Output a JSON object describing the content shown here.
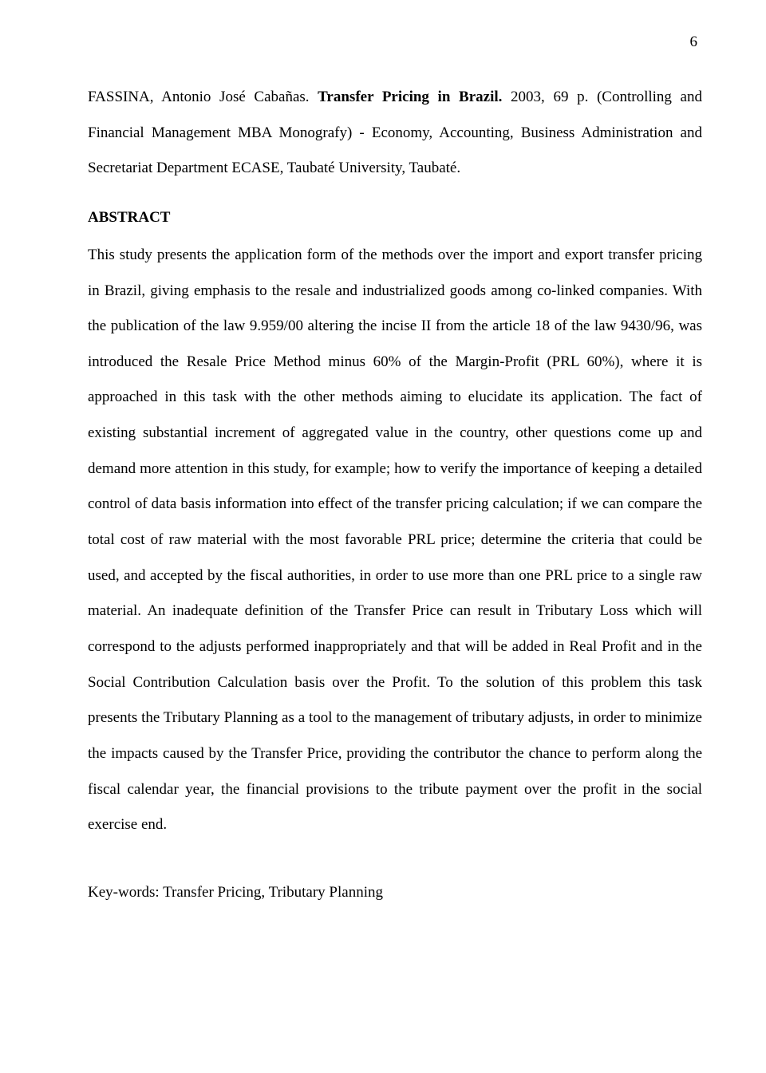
{
  "page_number": "6",
  "citation": {
    "author": "FASSINA, Antonio José Cabañas. ",
    "title_bold": "Transfer Pricing in Brazil.",
    "rest": " 2003, 69 p. (Controlling and Financial Management MBA Monografy) - Economy, Accounting, Business Administration and Secretariat Department ECASE, Taubaté University, Taubaté."
  },
  "abstract": {
    "heading": "ABSTRACT",
    "body": "This study presents the application form of the methods over the import and export transfer pricing in Brazil, giving emphasis to the resale and industrialized goods among co-linked companies. With the publication of the law 9.959/00 altering the incise II from the article 18 of the law 9430/96, was introduced the Resale Price Method minus 60% of the Margin-Profit (PRL 60%), where it is approached in this task with the other methods aiming to elucidate its application. The fact of existing substantial increment of aggregated value in the country, other questions come up and demand more attention in this study, for example; how to verify the importance of keeping a detailed control of data basis information into effect of the transfer pricing calculation; if we can compare the total cost of raw material with the most favorable PRL price; determine the criteria that could be used, and accepted by the fiscal authorities, in order to use more than one PRL price to a single raw material. An inadequate definition of the Transfer Price can result in Tributary Loss which will correspond to the adjusts performed inappropriately and that will be added in Real Profit and in the Social Contribution Calculation basis over the Profit. To the solution of this problem this task presents the Tributary Planning as a tool to the management of tributary adjusts, in order to minimize the impacts caused by the Transfer Price, providing the contributor the chance to perform along the fiscal calendar year, the financial provisions to the tribute payment over the profit in the social exercise end."
  },
  "keywords": "Key-words: Transfer Pricing, Tributary Planning"
}
